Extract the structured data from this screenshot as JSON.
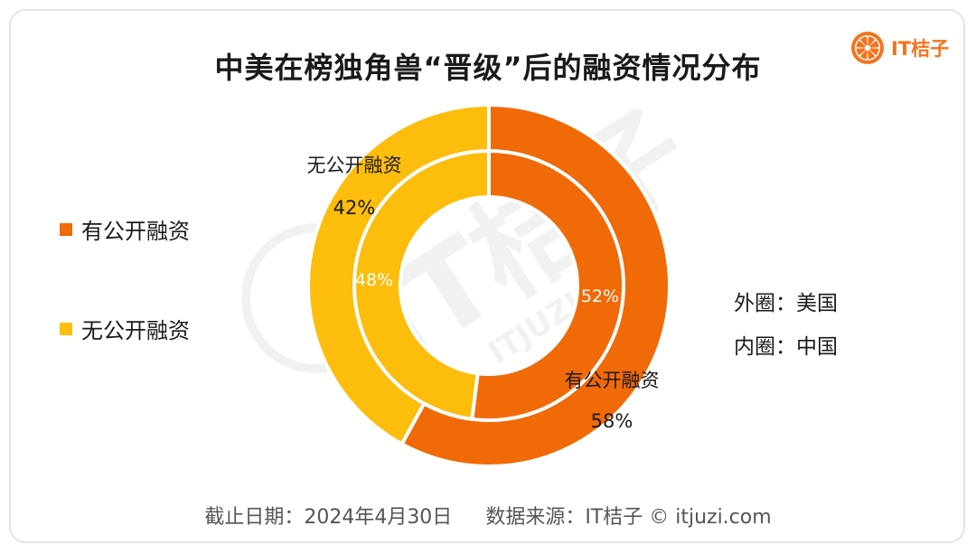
{
  "title": "中美在榜独角兽“晋级”后的融资情况分布",
  "brand": {
    "name": "IT桔子",
    "logo_icon": "orange-slice-icon",
    "logo_color": "#f5731c"
  },
  "watermark": {
    "text": "IT桔子",
    "sub": "ITJUZI.COM"
  },
  "legend": [
    {
      "label": "有公开融资",
      "color": "#f06a08"
    },
    {
      "label": "无公开融资",
      "color": "#fdbd0d"
    }
  ],
  "notes": {
    "outer": "外圈：美国",
    "inner": "内圈：中国"
  },
  "footer": {
    "date": "截止日期：2024年4月30日",
    "source": "数据来源：IT桔子 © itjuzi.com"
  },
  "chart_data": {
    "type": "pie",
    "variant": "nested-donut",
    "categories": [
      "有公开融资",
      "无公开融资"
    ],
    "colors": [
      "#f06a08",
      "#fdbd0d"
    ],
    "series": [
      {
        "name": "美国",
        "ring": "outer",
        "values": [
          58,
          42
        ],
        "labels": [
          "58%",
          "42%"
        ]
      },
      {
        "name": "中国",
        "ring": "inner",
        "values": [
          52,
          48
        ],
        "labels": [
          "52%",
          "48%"
        ]
      }
    ]
  }
}
